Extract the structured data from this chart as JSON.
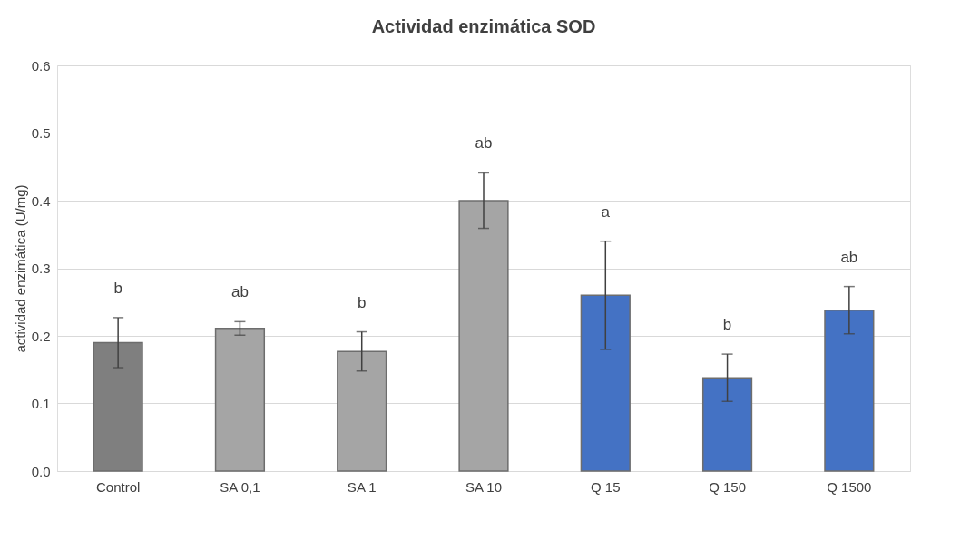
{
  "chart_data": {
    "type": "bar",
    "title": "Actividad enzimática SOD",
    "ylabel": "actividad enzimática (U/mg)",
    "categories": [
      "Control",
      "SA 0,1",
      "SA 1",
      "SA 10",
      "Q 15",
      "Q 150",
      "Q 1500"
    ],
    "values": [
      0.19,
      0.211,
      0.177,
      0.4,
      0.26,
      0.138,
      0.238
    ],
    "errors": [
      0.037,
      0.01,
      0.029,
      0.041,
      0.08,
      0.035,
      0.035
    ],
    "colors": [
      "#7f7f7f",
      "#a5a5a5",
      "#a5a5a5",
      "#a5a5a5",
      "#4472c4",
      "#4472c4",
      "#4472c4"
    ],
    "ylim": [
      0,
      0.6
    ],
    "yticks": [
      {
        "value": 0,
        "label": "0.0"
      },
      {
        "value": 0.1,
        "label": "0.1"
      },
      {
        "value": 0.2,
        "label": "0.2"
      },
      {
        "value": 0.3,
        "label": "0.3"
      },
      {
        "value": 0.4,
        "label": "0.4"
      },
      {
        "value": 0.5,
        "label": "0.5"
      },
      {
        "value": 0.6,
        "label": "0.6"
      }
    ],
    "grid": "y",
    "annotations": [
      "b",
      "ab",
      "b",
      "ab",
      "a",
      "b",
      "ab"
    ]
  }
}
